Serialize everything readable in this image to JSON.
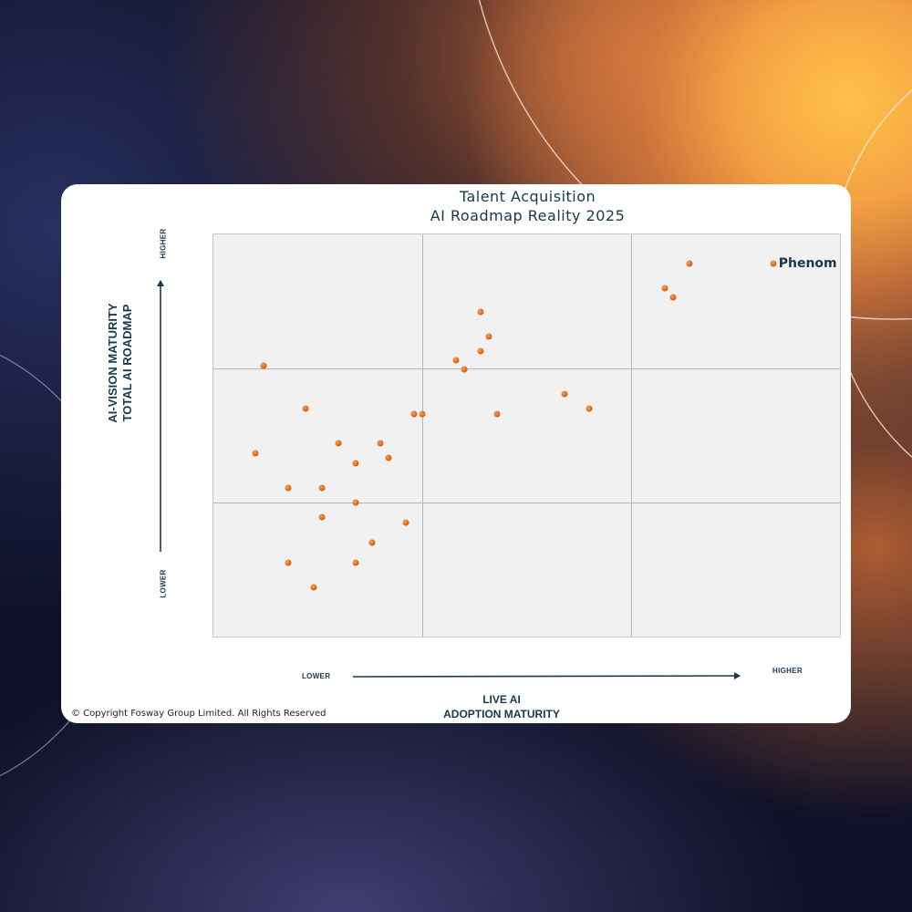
{
  "chart_data": {
    "type": "scatter",
    "title": [
      "Talent Acquisition",
      "AI Roadmap Reality 2025"
    ],
    "xlabel": [
      "LIVE AI",
      "ADOPTION MATURITY"
    ],
    "ylabel": [
      "AI-VISION MATURITY",
      "TOTAL AI ROADMAP"
    ],
    "x_tick_low": "Lower",
    "x_tick_high": "Higher",
    "y_tick_low": "Lower",
    "y_tick_high": "Higher",
    "xlim": [
      0,
      3
    ],
    "ylim": [
      0,
      3
    ],
    "grid": "3x3",
    "points": [
      {
        "x": 0.24,
        "y": 2.02,
        "label": ""
      },
      {
        "x": 0.44,
        "y": 1.7,
        "label": ""
      },
      {
        "x": 0.2,
        "y": 1.37,
        "label": ""
      },
      {
        "x": 0.6,
        "y": 1.44,
        "label": ""
      },
      {
        "x": 0.68,
        "y": 1.29,
        "label": ""
      },
      {
        "x": 0.8,
        "y": 1.44,
        "label": ""
      },
      {
        "x": 0.84,
        "y": 1.33,
        "label": ""
      },
      {
        "x": 0.36,
        "y": 1.11,
        "label": ""
      },
      {
        "x": 0.52,
        "y": 1.11,
        "label": ""
      },
      {
        "x": 0.68,
        "y": 1.0,
        "label": ""
      },
      {
        "x": 0.52,
        "y": 0.89,
        "label": ""
      },
      {
        "x": 0.92,
        "y": 0.85,
        "label": ""
      },
      {
        "x": 0.76,
        "y": 0.7,
        "label": ""
      },
      {
        "x": 0.36,
        "y": 0.55,
        "label": ""
      },
      {
        "x": 0.68,
        "y": 0.55,
        "label": ""
      },
      {
        "x": 0.48,
        "y": 0.37,
        "label": ""
      },
      {
        "x": 0.96,
        "y": 1.66,
        "label": ""
      },
      {
        "x": 1.0,
        "y": 1.66,
        "label": ""
      },
      {
        "x": 1.16,
        "y": 2.06,
        "label": ""
      },
      {
        "x": 1.2,
        "y": 1.99,
        "label": ""
      },
      {
        "x": 1.28,
        "y": 2.13,
        "label": ""
      },
      {
        "x": 1.32,
        "y": 2.24,
        "label": ""
      },
      {
        "x": 1.28,
        "y": 2.42,
        "label": ""
      },
      {
        "x": 1.36,
        "y": 1.66,
        "label": ""
      },
      {
        "x": 1.68,
        "y": 1.81,
        "label": ""
      },
      {
        "x": 1.8,
        "y": 1.7,
        "label": ""
      },
      {
        "x": 2.16,
        "y": 2.6,
        "label": ""
      },
      {
        "x": 2.2,
        "y": 2.53,
        "label": ""
      },
      {
        "x": 2.28,
        "y": 2.78,
        "label": ""
      },
      {
        "x": 2.68,
        "y": 2.78,
        "label": "Phenom"
      }
    ]
  },
  "copyright": "© Copyright Fosway Group Limited. All Rights Reserved",
  "colors": {
    "point": "#e06a18",
    "text": "#17394d",
    "plot_bg": "#f1f1f1",
    "gridline": "#b5b5b5"
  }
}
